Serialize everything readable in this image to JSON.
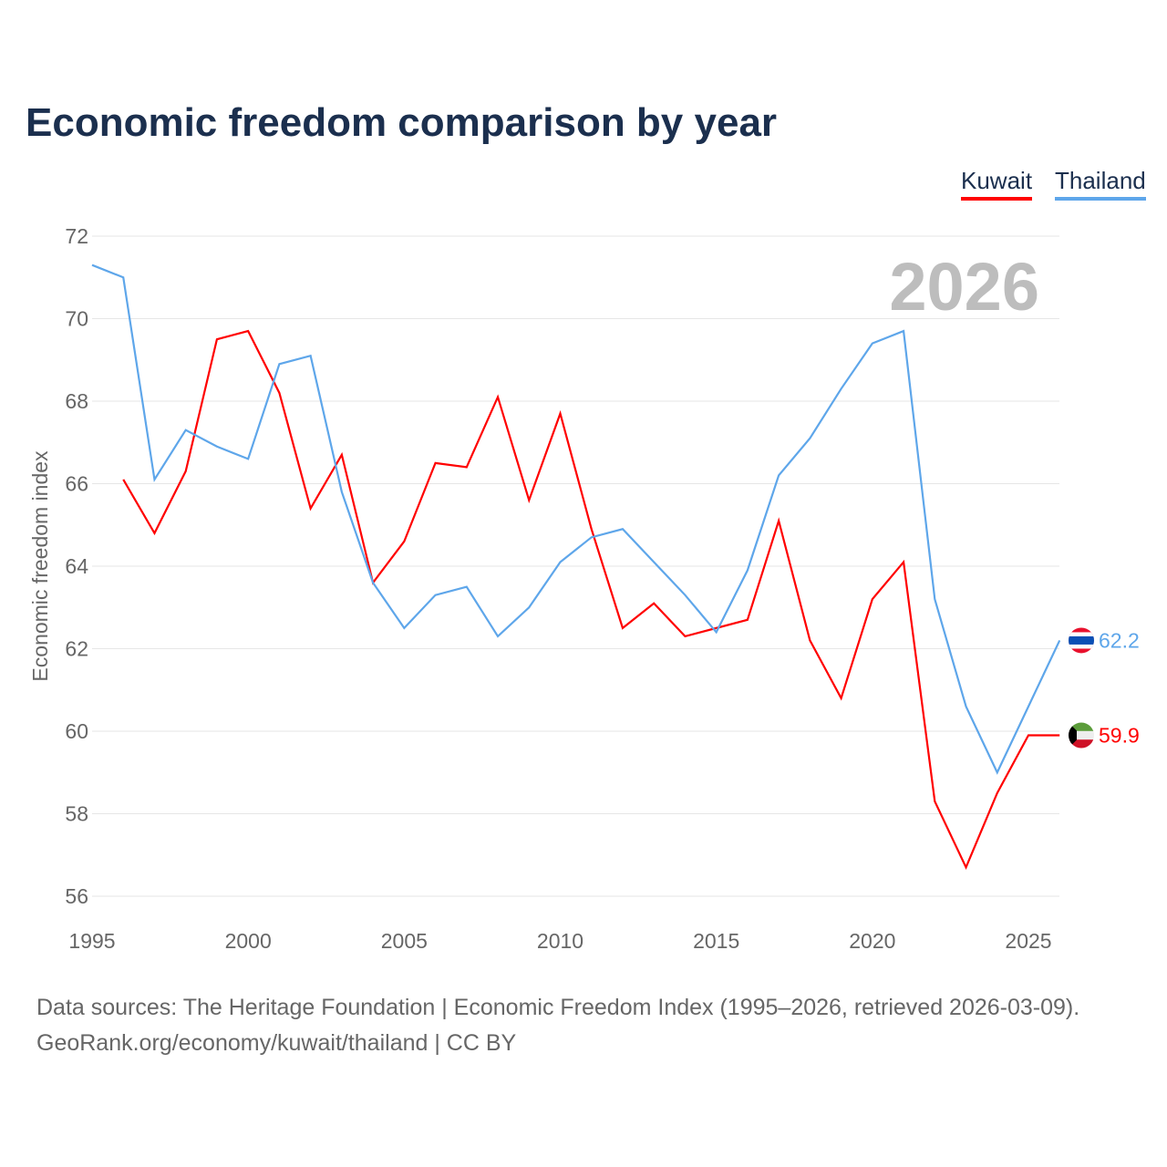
{
  "title": "Economic freedom comparison by year",
  "footer": {
    "line1": "Data sources: The Heritage Foundation | Economic Freedom Index (1995–2026, retrieved 2026-03-09).",
    "line2": "GeoRank.org/economy/kuwait/thailand | CC BY"
  },
  "chart_data": {
    "type": "line",
    "title": "Economic freedom comparison by year",
    "ylabel": "Economic freedom index",
    "xlabel": "",
    "ylim": [
      56,
      72
    ],
    "xlim": [
      1995,
      2026
    ],
    "yticks": [
      56,
      58,
      60,
      62,
      64,
      66,
      68,
      70,
      72
    ],
    "xticks": [
      1995,
      2000,
      2005,
      2010,
      2015,
      2020,
      2025
    ],
    "watermark_year": "2026",
    "legend": "top-right",
    "grid": true,
    "series": [
      {
        "name": "Kuwait",
        "color": "#ff0000",
        "end_label": "59.9",
        "x": [
          1996,
          1997,
          1998,
          1999,
          2000,
          2001,
          2002,
          2003,
          2004,
          2005,
          2006,
          2007,
          2008,
          2009,
          2010,
          2011,
          2012,
          2013,
          2014,
          2015,
          2016,
          2017,
          2018,
          2019,
          2020,
          2021,
          2022,
          2023,
          2024,
          2025,
          2026
        ],
        "values": [
          66.1,
          64.8,
          66.3,
          69.5,
          69.7,
          68.2,
          65.4,
          66.7,
          63.6,
          64.6,
          66.5,
          66.4,
          68.1,
          65.6,
          67.7,
          64.9,
          62.5,
          63.1,
          62.3,
          62.5,
          62.7,
          65.1,
          62.2,
          60.8,
          63.2,
          64.1,
          58.3,
          56.7,
          58.5,
          59.9,
          59.9
        ]
      },
      {
        "name": "Thailand",
        "color": "#5ea6ea",
        "end_label": "62.2",
        "x": [
          1995,
          1996,
          1997,
          1998,
          1999,
          2000,
          2001,
          2002,
          2003,
          2004,
          2005,
          2006,
          2007,
          2008,
          2009,
          2010,
          2011,
          2012,
          2013,
          2014,
          2015,
          2016,
          2017,
          2018,
          2019,
          2020,
          2021,
          2022,
          2023,
          2024,
          2025,
          2026
        ],
        "values": [
          71.3,
          71.0,
          66.1,
          67.3,
          66.9,
          66.6,
          68.9,
          69.1,
          65.8,
          63.6,
          62.5,
          63.3,
          63.5,
          62.3,
          63.0,
          64.1,
          64.7,
          64.9,
          64.1,
          63.3,
          62.4,
          63.9,
          66.2,
          67.1,
          68.3,
          69.4,
          69.7,
          63.2,
          60.6,
          59.0,
          60.6,
          62.2
        ]
      }
    ]
  }
}
